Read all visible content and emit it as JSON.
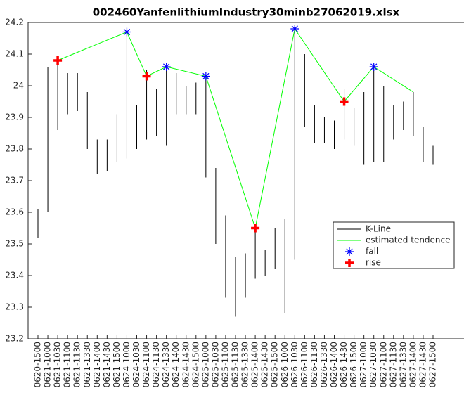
{
  "chart_data": {
    "type": "kline",
    "title": "002460YanfenlithiumIndustry30minb27062019.xlsx",
    "categories": [
      "0620-1500",
      "0621-1000",
      "0621-1030",
      "0621-1100",
      "0621-1130",
      "0621-1330",
      "0621-1400",
      "0621-1430",
      "0621-1500",
      "0624-1000",
      "0624-1030",
      "0624-1100",
      "0624-1130",
      "0624-1330",
      "0624-1400",
      "0624-1430",
      "0624-1500",
      "0625-1000",
      "0625-1030",
      "0625-1100",
      "0625-1130",
      "0625-1330",
      "0625-1400",
      "0625-1430",
      "0625-1500",
      "0626-1000",
      "0626-1030",
      "0626-1100",
      "0626-1130",
      "0626-1330",
      "0626-1400",
      "0626-1430",
      "0626-1500",
      "0627-1000",
      "0627-1030",
      "0627-1100",
      "0627-1130",
      "0627-1330",
      "0627-1400",
      "0627-1430",
      "0627-1500"
    ],
    "ylim": [
      23.2,
      24.2
    ],
    "yticks": [
      23.2,
      23.3,
      23.4,
      23.5,
      23.6,
      23.7,
      23.8,
      23.9,
      24,
      24.1,
      24.2
    ],
    "series": [
      {
        "name": "K-Line",
        "color": "#000000",
        "low": [
          23.52,
          23.6,
          23.86,
          23.91,
          23.92,
          23.8,
          23.72,
          23.73,
          23.76,
          23.77,
          23.8,
          23.83,
          23.84,
          23.81,
          23.91,
          23.91,
          23.91,
          23.71,
          23.5,
          23.33,
          23.27,
          23.33,
          23.39,
          23.4,
          23.42,
          23.28,
          23.45,
          23.87,
          23.82,
          23.82,
          23.8,
          23.83,
          23.81,
          23.75,
          23.76,
          23.76,
          23.83,
          23.86,
          23.84,
          23.76,
          23.75
        ],
        "high": [
          23.61,
          24.06,
          24.09,
          24.04,
          24.04,
          23.98,
          23.83,
          23.83,
          23.91,
          24.17,
          23.94,
          24.05,
          23.99,
          24.06,
          24.04,
          24.0,
          24.01,
          24.03,
          23.74,
          23.59,
          23.46,
          23.47,
          23.55,
          23.48,
          23.55,
          23.58,
          24.18,
          24.1,
          23.94,
          23.9,
          23.89,
          23.99,
          23.93,
          23.98,
          24.06,
          24.0,
          23.94,
          23.95,
          23.98,
          23.87,
          23.81
        ]
      },
      {
        "name": "estimated tendence",
        "color": "#00ff00",
        "x": [
          "0621-1030",
          "0624-1000",
          "0624-1100",
          "0624-1330",
          "0625-1000",
          "0625-1400",
          "0626-1030",
          "0626-1430",
          "0627-1030",
          "0627-1400"
        ],
        "values": [
          24.08,
          24.17,
          24.03,
          24.06,
          24.03,
          23.55,
          24.18,
          23.95,
          24.06,
          23.98
        ]
      },
      {
        "name": "fall",
        "color": "#0000ff",
        "marker": "asterisk",
        "x": [
          "0624-1000",
          "0624-1330",
          "0625-1000",
          "0626-1030",
          "0627-1030"
        ],
        "values": [
          24.17,
          24.06,
          24.03,
          24.18,
          24.06
        ]
      },
      {
        "name": "rise",
        "color": "#ff0000",
        "marker": "plus",
        "x": [
          "0621-1030",
          "0624-1100",
          "0625-1400",
          "0626-1430"
        ],
        "values": [
          24.08,
          24.03,
          23.55,
          23.95
        ]
      }
    ]
  }
}
